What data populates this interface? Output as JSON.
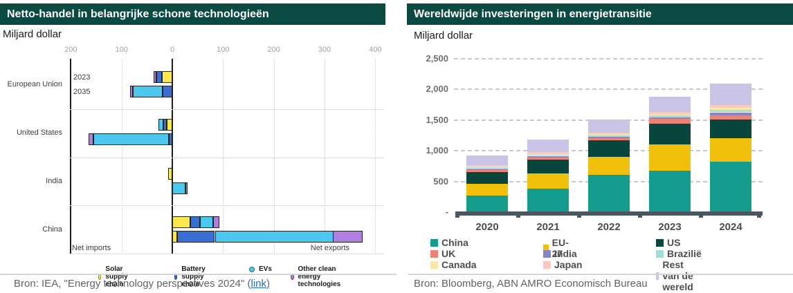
{
  "chart_data": [
    {
      "type": "bar",
      "orientation": "horizontal-stacked-diverging",
      "title": "Netto-handel in belangrijke schone technologieën",
      "unit_label": "Miljard dollar",
      "x_axis": {
        "tick_values": [
          -200,
          -100,
          0,
          100,
          200,
          300,
          400
        ],
        "tick_labels": [
          "200",
          "100",
          "0",
          "100",
          "200",
          "300",
          "400"
        ],
        "range": [
          -205,
          415
        ],
        "gridlines": "dotted vertical; solid line at -200 and 0"
      },
      "value_note": "negative = net imports, positive = net exports, miljard dollar",
      "groups": [
        {
          "label": "European Union",
          "bars": [
            {
              "year": "2023",
              "show_year_label": true,
              "segments": [
                {
                  "key": "solar",
                  "value": -21
                },
                {
                  "key": "battery",
                  "value": -11
                },
                {
                  "key": "other",
                  "value": -5
                }
              ]
            },
            {
              "year": "2035",
              "show_year_label": true,
              "segments": [
                {
                  "key": "battery",
                  "value": -19
                },
                {
                  "key": "evs",
                  "value": -59
                },
                {
                  "key": "other",
                  "value": -6
                }
              ]
            }
          ]
        },
        {
          "label": "United States",
          "bars": [
            {
              "year": "2023",
              "show_year_label": false,
              "segments": [
                {
                  "key": "solar",
                  "value": -11
                },
                {
                  "key": "battery",
                  "value": -7
                },
                {
                  "key": "evs",
                  "value": -9
                }
              ]
            },
            {
              "year": "2035",
              "show_year_label": false,
              "segments": [
                {
                  "key": "battery",
                  "value": -7
                },
                {
                  "key": "evs",
                  "value": -149
                },
                {
                  "key": "other",
                  "value": -10
                }
              ]
            }
          ]
        },
        {
          "label": "India",
          "bars": [
            {
              "year": "2023",
              "show_year_label": false,
              "segments": [
                {
                  "key": "solar",
                  "value": -8
                }
              ]
            },
            {
              "year": "2035",
              "show_year_label": false,
              "segments": [
                {
                  "key": "evs",
                  "value": 26
                },
                {
                  "key": "other",
                  "value": 4
                }
              ]
            }
          ]
        },
        {
          "label": "China",
          "bars": [
            {
              "year": "2023",
              "show_year_label": false,
              "segments": [
                {
                  "key": "solar",
                  "value": 36
                },
                {
                  "key": "battery",
                  "value": 19
                },
                {
                  "key": "evs",
                  "value": 26
                },
                {
                  "key": "other",
                  "value": 12
                }
              ]
            },
            {
              "year": "2035",
              "show_year_label": false,
              "segments": [
                {
                  "key": "solar",
                  "value": 10
                },
                {
                  "key": "battery",
                  "value": 74
                },
                {
                  "key": "evs",
                  "value": 233
                },
                {
                  "key": "other",
                  "value": 58
                }
              ]
            }
          ]
        }
      ],
      "legend": [
        {
          "key": "solar",
          "label": "Solar supply chain",
          "color": "#fbe84a"
        },
        {
          "key": "battery",
          "label": "Battery supply chain",
          "color": "#3a6ed0"
        },
        {
          "key": "evs",
          "label": "EVs",
          "color": "#4cc7f0"
        },
        {
          "key": "other",
          "label": "Other clean energy technologies",
          "color": "#b07ee0"
        }
      ],
      "annotations": {
        "left": "Net imports",
        "right": "Net exports"
      },
      "source": {
        "prefix": "Bron: IEA, \"Energy technology perspectives 2024\" (",
        "link_text": "link",
        "suffix": ")"
      }
    },
    {
      "type": "bar",
      "orientation": "vertical-stacked",
      "title": "Wereldwijde investeringen in energietransitie",
      "unit_label": "Miljard dollar",
      "categories": [
        "2020",
        "2021",
        "2022",
        "2023",
        "2024"
      ],
      "y_axis": {
        "tick_labels": [
          "2,500",
          "2,000",
          "1,500",
          "1,000",
          "500",
          "-"
        ],
        "tick_values": [
          2500,
          2000,
          1500,
          1000,
          500,
          0
        ],
        "range": [
          0,
          2500
        ],
        "gridlines": "dashed horizontal"
      },
      "totals": [
        920,
        1175,
        1510,
        1880,
        2088
      ],
      "series": [
        {
          "name": "China",
          "color": "#149c8e",
          "values": [
            265,
            380,
            610,
            680,
            818
          ]
        },
        {
          "name": "EU-27",
          "color": "#efbf0a",
          "values": [
            195,
            245,
            290,
            425,
            385
          ]
        },
        {
          "name": "US",
          "color": "#07453d",
          "values": [
            195,
            225,
            265,
            335,
            310
          ]
        },
        {
          "name": "UK",
          "color": "#ec8374",
          "values": [
            40,
            45,
            45,
            75,
            65
          ]
        },
        {
          "name": "India",
          "color": "#8b84c3",
          "values": [
            15,
            20,
            20,
            30,
            45
          ]
        },
        {
          "name": "Brazilië",
          "color": "#a5dcd4",
          "values": [
            15,
            15,
            20,
            30,
            35
          ]
        },
        {
          "name": "Canada",
          "color": "#f8e7a8",
          "values": [
            15,
            15,
            20,
            25,
            35
          ]
        },
        {
          "name": "Japan",
          "color": "#f7c9c0",
          "values": [
            25,
            30,
            30,
            30,
            45
          ]
        },
        {
          "name": "Rest van de wereld",
          "color": "#c9c4e5",
          "values": [
            155,
            200,
            210,
            250,
            350
          ]
        }
      ],
      "source": {
        "text": "Bron: Bloomberg, ABN AMRO Economisch Bureau"
      }
    }
  ],
  "theme": {
    "header_bg": "#0a4a43",
    "header_text": "#ffffff",
    "baseline_color": "#4b5661",
    "gridline_color": "#c7c7c7",
    "divider_color": "#d2d5d6",
    "source_text_color": "#5f6368",
    "link_color": "#1d6fbe"
  }
}
